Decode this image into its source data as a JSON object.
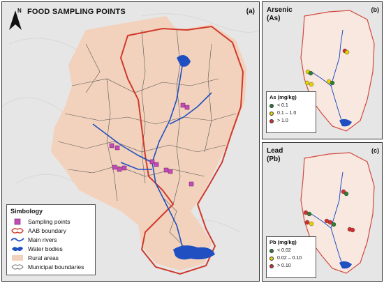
{
  "panel_a": {
    "title": "FOOD SAMPLING POINTS",
    "tag": "(a)",
    "north_label": "N",
    "legend": {
      "title": "Simbology",
      "items": [
        {
          "label": "Sampling points",
          "icon": "sampling-point-square"
        },
        {
          "label": "AAB boundary",
          "icon": "boundary-outline"
        },
        {
          "label": "Main rivers",
          "icon": "river-line"
        },
        {
          "label": "Water bodies",
          "icon": "water-body-shape"
        },
        {
          "label": "Rural areas",
          "icon": "rural-area-fill"
        },
        {
          "label": "Municipal boundaries",
          "icon": "municipal-outline"
        }
      ]
    },
    "colors": {
      "rural": "#f2d2bc",
      "boundary": "#d0392b",
      "river": "#1f4fc1",
      "sampling": "#c24bb8"
    }
  },
  "panel_b": {
    "element_line1": "Arsenic",
    "element_line2": "(As)",
    "tag": "(b)",
    "legend": {
      "title": "As (mg/kg)",
      "classes": [
        {
          "label": "< 0.1",
          "color": "#2e7d32"
        },
        {
          "label": "0.1 – 1.0",
          "color": "#e6d200"
        },
        {
          "label": "> 1.0",
          "color": "#d32f2f"
        }
      ]
    }
  },
  "panel_c": {
    "element_line1": "Lead",
    "element_line2": "(Pb)",
    "tag": "(c)",
    "legend": {
      "title": "Pb (mg/kg)",
      "classes": [
        {
          "label": "< 0.02",
          "color": "#2e7d32"
        },
        {
          "label": "0.02 – 0.10",
          "color": "#e6d200"
        },
        {
          "label": "> 0.10",
          "color": "#d32f2f"
        }
      ]
    }
  }
}
